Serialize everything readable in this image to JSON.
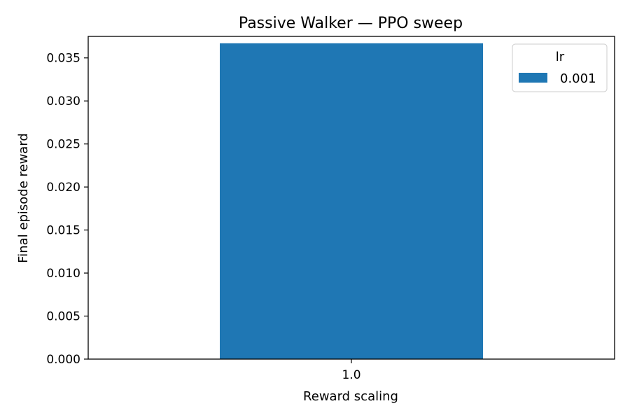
{
  "chart_data": {
    "type": "bar",
    "title": "Passive Walker — PPO sweep",
    "xlabel": "Reward scaling",
    "ylabel": "Final episode reward",
    "categories": [
      "1.0"
    ],
    "series": [
      {
        "name": "0.001",
        "color": "#1f77b4",
        "values": [
          0.0367
        ]
      }
    ],
    "ylim": [
      0,
      0.0375
    ],
    "yticks": [
      0.0,
      0.005,
      0.01,
      0.015,
      0.02,
      0.025,
      0.03,
      0.035
    ],
    "ytick_labels": [
      "0.000",
      "0.005",
      "0.010",
      "0.015",
      "0.020",
      "0.025",
      "0.030",
      "0.035"
    ],
    "legend": {
      "title": "lr",
      "placement": "top-right"
    },
    "grid": false
  }
}
